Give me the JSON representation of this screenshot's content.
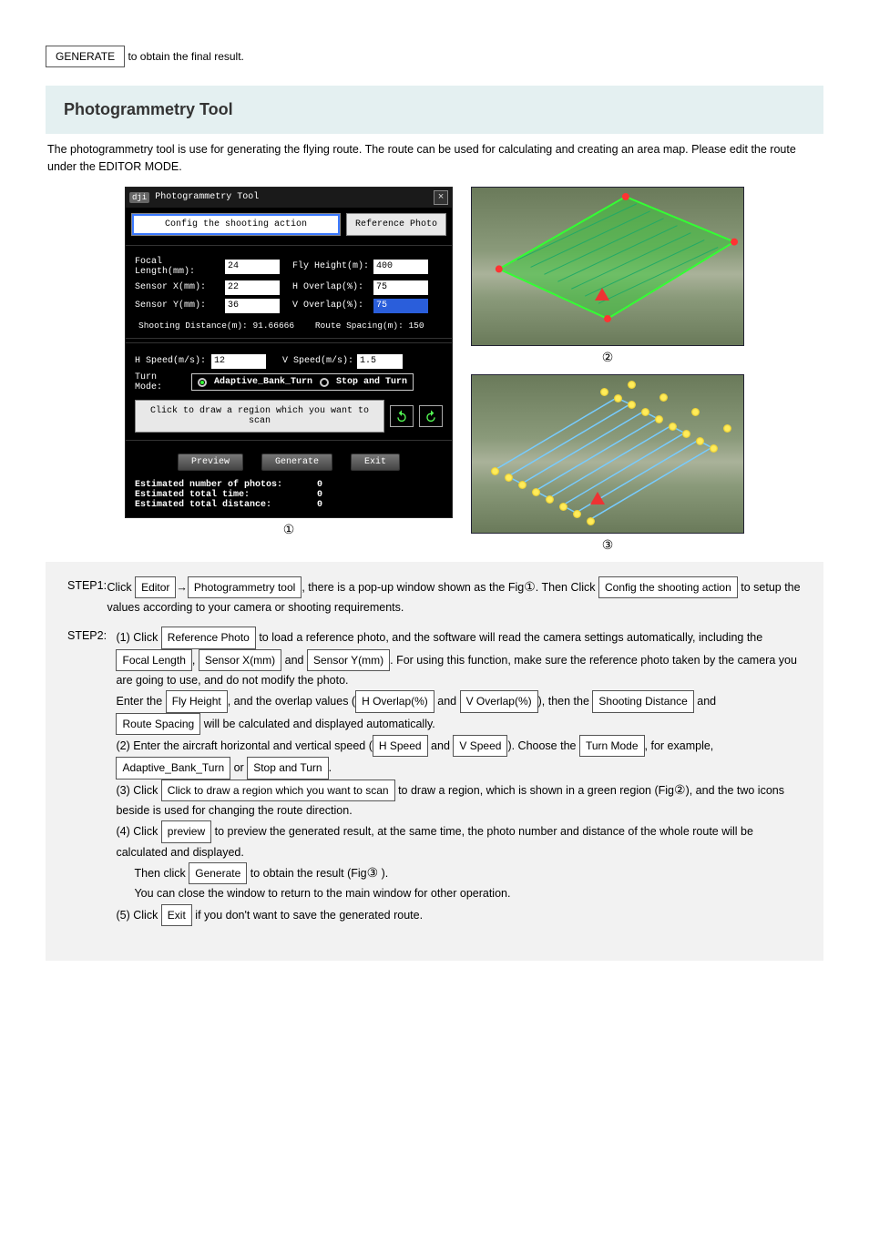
{
  "header": {
    "generate_btn": "GENERATE"
  },
  "section": {
    "title": "Photogrammetry Tool",
    "intro": "The photogrammetry tool is use for generating the flying route. The route can be used for calculating and creating an area map. Please edit the route under the EDITOR MODE."
  },
  "tool": {
    "title": "Photogrammetry Tool",
    "logo": "dji",
    "tabs": {
      "config": "Config the shooting action",
      "ref": "Reference Photo"
    },
    "fields": {
      "focal_label": "Focal Length(mm):",
      "focal_val": "24",
      "flyh_label": "Fly Height(m):",
      "flyh_val": "400",
      "sx_label": "Sensor X(mm):",
      "sx_val": "22",
      "hov_label": "H Overlap(%):",
      "hov_val": "75",
      "sy_label": "Sensor Y(mm):",
      "sy_val": "36",
      "vov_label": "V Overlap(%):",
      "vov_val": "75"
    },
    "info": {
      "shoot_dist_label": "Shooting Distance(m):",
      "shoot_dist_val": "91.66666",
      "route_sp_label": "Route Spacing(m):",
      "route_sp_val": "150"
    },
    "speed": {
      "h_label": "H Speed(m/s):",
      "h_val": "12",
      "v_label": "V Speed(m/s):",
      "v_val": "1.5",
      "turn_label": "Turn Mode:",
      "opt1": "Adaptive_Bank_Turn",
      "opt2": "Stop and Turn"
    },
    "draw_btn": "Click to draw a region which you want to scan",
    "buttons": {
      "preview": "Preview",
      "generate": "Generate",
      "exit": "Exit"
    },
    "results": {
      "photos_label": "Estimated number of photos:",
      "photos_val": "0",
      "time_label": "Estimated total time:",
      "time_val": "0",
      "dist_label": "Estimated total distance:",
      "dist_val": "0"
    }
  },
  "captions": {
    "c1": "①",
    "c2": "②",
    "c3": "③"
  },
  "instructions": {
    "step1": {
      "prefix": "Click",
      "btn1": "Editor",
      "arrow": "→",
      "btn2": "Photogrammetry tool",
      "mid": ", there is a pop-up window shown as the Fig",
      "circ": "①",
      "end": ". Then Click",
      "btn3": "Config the shooting action",
      "tail": " to setup the values according to your camera or shooting requirements."
    },
    "step2": {
      "line1a": "Click ",
      "btn1": "Reference Photo",
      "line1b": " to load a reference photo, and the software will read the camera settings automatically, including the ",
      "b_focal": "Focal Length",
      "b_sx": "Sensor X(mm)",
      "mid_and1": " and ",
      "b_sy": "Sensor Y(mm)",
      "line1c": ". For using this function, make sure the reference photo taken by the camera you are going to use, and do not modify the photo.",
      "line2a": "Enter the ",
      "b_flyh": "Fly Height",
      "line2b": ", and the overlap values (",
      "b_hov": "H Overlap(%)",
      "line2c": " and ",
      "b_vov": "V Overlap(%)",
      "line2d": "), then the ",
      "b_shoot": "Shooting Distance",
      "line2e": " and ",
      "b_route": "Route Spacing",
      "line2f": " will be calculated and displayed automatically.",
      "line3a": "Enter the aircraft horizontal and vertical speed (",
      "b_hs": "H Speed",
      "line3b": " and ",
      "b_vs": "V Speed",
      "line3c": "). Choose the ",
      "b_turn": "Turn Mode",
      "line3d": ", for example, ",
      "b_adap": "Adaptive_Bank_Turn",
      "line3e": " or ",
      "b_stop": "Stop and Turn",
      "line3f": ".",
      "line4a": "Click ",
      "b_draw": "Click to draw a region which you want to scan",
      "line4b": " to draw a region, which is shown in a green region (Fig",
      "circ2": "②",
      "line4c": "), and the two icons beside is used for changing the route direction.",
      "line5a": "Click ",
      "b_prev": "preview",
      "line5b": " to preview the generated result, at the same time, the photo number and distance of the whole route will be calculated and displayed.",
      "line6a": "Then click ",
      "b_gen": "Generate",
      "line6b": " to obtain the result (Fig",
      "circ3": "③",
      "line6c": " ).",
      "line7a": "You can close the window to return to the main window for other operation.",
      "line8a": "Click ",
      "b_exit": "Exit",
      "line8b": " if you don't want to save the generated route."
    }
  }
}
